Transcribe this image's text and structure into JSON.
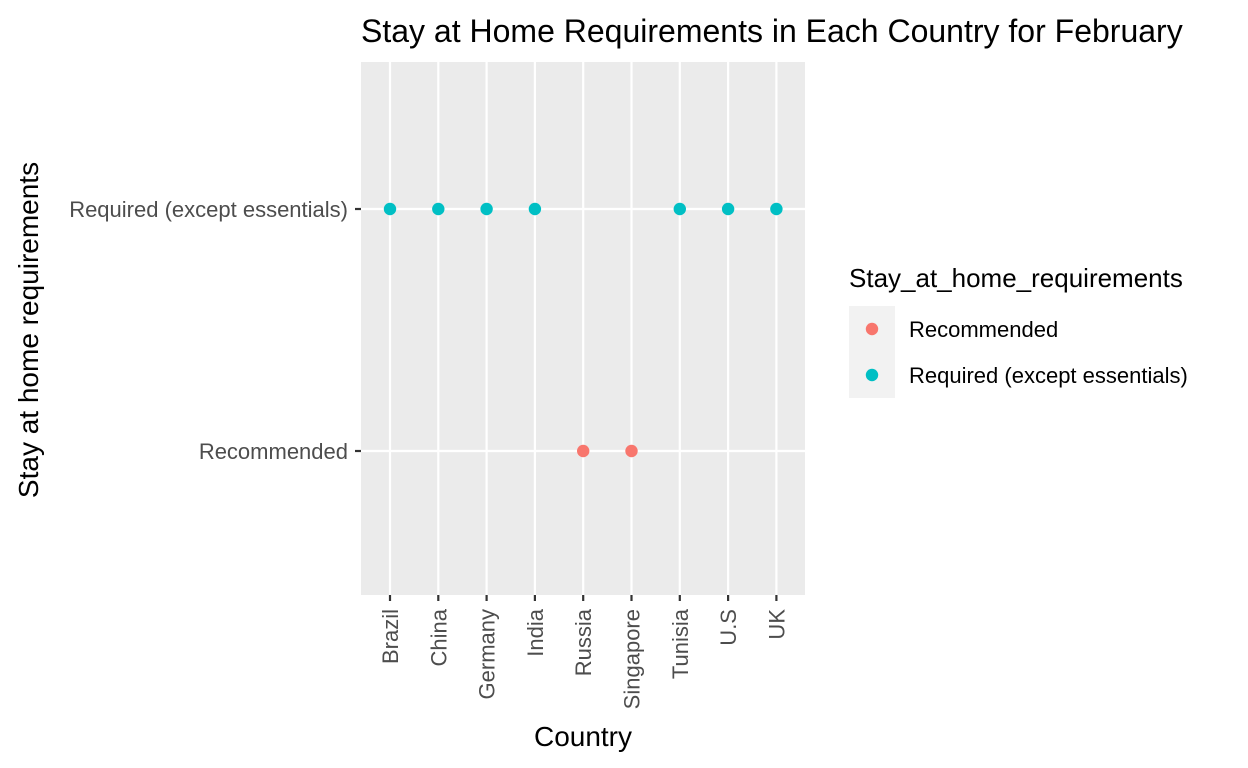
{
  "chart_data": {
    "type": "scatter",
    "title": "Stay at Home Requirements in Each Country for February",
    "xlabel": "Country",
    "ylabel": "Stay at home requirements",
    "categories": [
      "Brazil",
      "China",
      "Germany",
      "India",
      "Russia",
      "Singapore",
      "Tunisia",
      "U.S",
      "UK"
    ],
    "y_levels": [
      "Recommended",
      "Required (except essentials)"
    ],
    "points": [
      {
        "x": "Brazil",
        "y": "Required (except essentials)"
      },
      {
        "x": "China",
        "y": "Required (except essentials)"
      },
      {
        "x": "Germany",
        "y": "Required (except essentials)"
      },
      {
        "x": "India",
        "y": "Required (except essentials)"
      },
      {
        "x": "Russia",
        "y": "Recommended"
      },
      {
        "x": "Singapore",
        "y": "Recommended"
      },
      {
        "x": "Tunisia",
        "y": "Required (except essentials)"
      },
      {
        "x": "U.S",
        "y": "Required (except essentials)"
      },
      {
        "x": "UK",
        "y": "Required (except essentials)"
      }
    ],
    "legend": {
      "title": "Stay_at_home_requirements",
      "position": "right",
      "entries": [
        {
          "label": "Recommended",
          "color": "#F8766D"
        },
        {
          "label": "Required (except essentials)",
          "color": "#00BFC4"
        }
      ]
    },
    "grid": true,
    "panel_background": "#EBEBEB",
    "gridline_color": "#FFFFFF"
  }
}
